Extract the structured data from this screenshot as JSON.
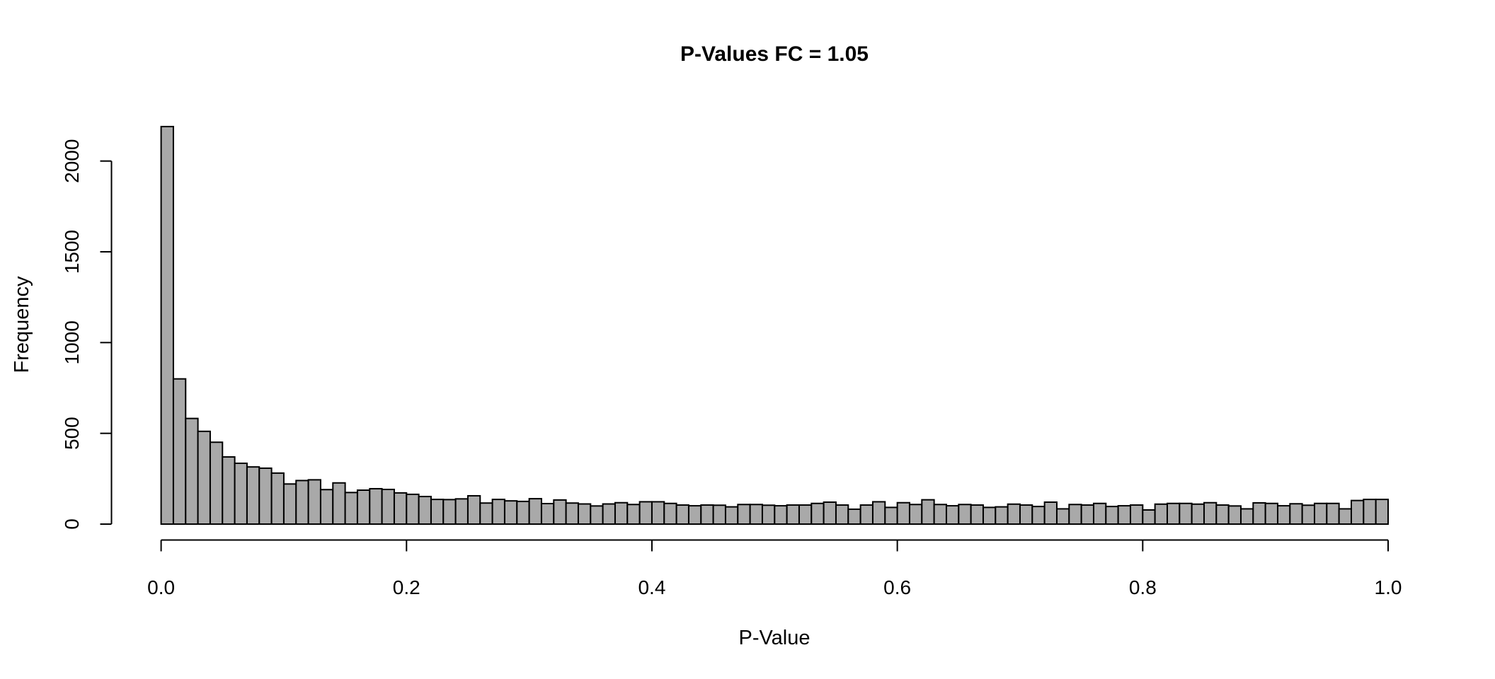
{
  "chart_data": {
    "type": "bar",
    "subtype": "histogram",
    "title": "P-Values FC = 1.05",
    "xlabel": "P-Value",
    "ylabel": "Frequency",
    "xlim": [
      0,
      1
    ],
    "ylim": [
      0,
      2200
    ],
    "grid": false,
    "legend_position": "none",
    "bin_start": 0.0,
    "bin_width": 0.01,
    "x_ticks": [
      {
        "label": "0.0",
        "value": 0.0
      },
      {
        "label": "0.2",
        "value": 0.2
      },
      {
        "label": "0.4",
        "value": 0.4
      },
      {
        "label": "0.6",
        "value": 0.6
      },
      {
        "label": "0.8",
        "value": 0.8
      },
      {
        "label": "1.0",
        "value": 1.0
      }
    ],
    "y_ticks": [
      {
        "label": "0",
        "value": 0
      },
      {
        "label": "500",
        "value": 500
      },
      {
        "label": "1000",
        "value": 1000
      },
      {
        "label": "1500",
        "value": 1500
      },
      {
        "label": "2000",
        "value": 2000
      }
    ],
    "values": [
      2190,
      800,
      582,
      511,
      451,
      370,
      335,
      315,
      308,
      281,
      221,
      240,
      244,
      190,
      227,
      174,
      187,
      195,
      191,
      172,
      164,
      152,
      136,
      135,
      139,
      156,
      116,
      136,
      128,
      125,
      140,
      113,
      133,
      116,
      111,
      100,
      111,
      118,
      108,
      123,
      123,
      114,
      105,
      101,
      105,
      104,
      95,
      108,
      108,
      104,
      101,
      105,
      105,
      114,
      121,
      105,
      82,
      105,
      123,
      92,
      118,
      108,
      134,
      108,
      101,
      108,
      105,
      92,
      95,
      110,
      105,
      97,
      121,
      84,
      108,
      105,
      114,
      97,
      101,
      105,
      78,
      110,
      114,
      114,
      110,
      118,
      105,
      100,
      84,
      117,
      114,
      101,
      112,
      104,
      114,
      114,
      84,
      130,
      136,
      136
    ],
    "colors": {
      "bar_fill": "#a9a9a9",
      "bar_border": "#000000",
      "axis": "#000000",
      "background": "#ffffff"
    }
  }
}
